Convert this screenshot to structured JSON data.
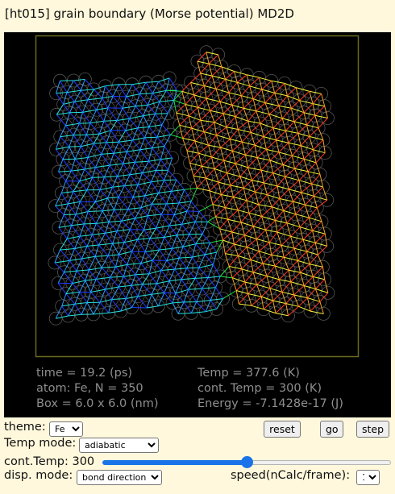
{
  "app": {
    "title": "[ht015] grain boundary (Morse potential) MD2D"
  },
  "readouts": {
    "time": "time = 19.2 (ps)",
    "atom": "atom: Fe,   N = 350",
    "box": "Box = 6.0 x 6.0 (nm)",
    "temp": "Temp = 377.6 (K)",
    "cont_temp": "cont. Temp = 300 (K)",
    "energy": "Energy = -7.1428e-17 (J)"
  },
  "controls": {
    "theme_label": "theme:",
    "theme_value": "Fe",
    "reset_label": "reset",
    "go_label": "go",
    "step_label": "step",
    "temp_mode_label": "Temp mode:",
    "temp_mode_value": "adiabatic",
    "cont_temp_label": "cont.Temp: 300",
    "cont_temp_fraction": 0.5,
    "disp_mode_label": "disp. mode:",
    "disp_mode_value": "bond direction",
    "speed_label": "speed(nCalc/frame):",
    "speed_value": "1"
  },
  "colors": {
    "background": "#fff8dc",
    "sim_background": "#000000",
    "box_outline": "#6b6b1f",
    "readout_text": "#8e8e8e",
    "slider_accent": "#1a73e8",
    "atom_outline": "#555555"
  }
}
